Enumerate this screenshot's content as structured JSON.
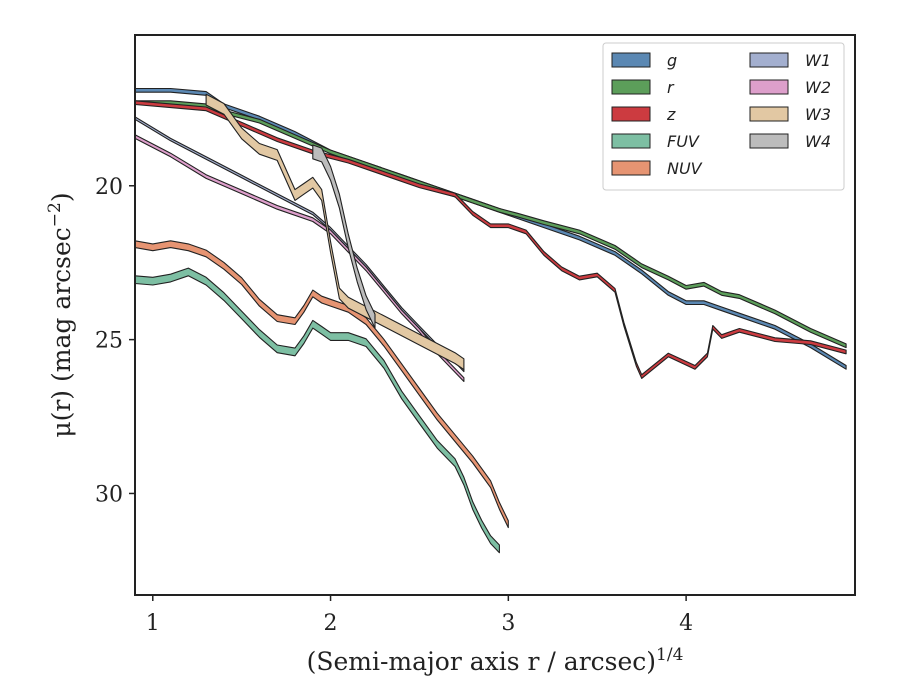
{
  "chart_data": {
    "type": "area",
    "xlabel": "(Semi-major axis r / arcsec)",
    "xlabel_exponent": "1/4",
    "ylabel": "μ(r) (mag arcsec",
    "ylabel_exponent": "−2",
    "ylabel_close": ")",
    "xlim": [
      0.9,
      4.95
    ],
    "ylim": [
      33.3,
      15.1
    ],
    "y_inverted": true,
    "x_ticks": [
      1,
      2,
      3,
      4
    ],
    "x_tick_labels": [
      "1",
      "2",
      "3",
      "4"
    ],
    "y_ticks": [
      20,
      25,
      30
    ],
    "y_tick_labels": [
      "20",
      "25",
      "30"
    ],
    "grid": false,
    "legend_position": "top-right",
    "legend_columns": 2,
    "series": [
      {
        "name": "g",
        "color": "#5b88b3",
        "width": 0.12,
        "x": [
          0.9,
          1.1,
          1.3,
          1.4,
          1.6,
          1.8,
          2.0,
          2.2,
          2.4,
          2.6,
          2.8,
          2.95,
          3.05,
          3.2,
          3.4,
          3.6,
          3.75,
          3.9,
          4.0,
          4.1,
          4.2,
          4.3,
          4.5,
          4.7,
          4.9
        ],
        "y": [
          16.9,
          16.9,
          17.0,
          17.4,
          17.8,
          18.3,
          18.9,
          19.3,
          19.7,
          20.1,
          20.5,
          20.8,
          21.0,
          21.3,
          21.7,
          22.2,
          22.8,
          23.5,
          23.8,
          23.8,
          24.0,
          24.2,
          24.6,
          25.2,
          25.9
        ]
      },
      {
        "name": "r",
        "color": "#5c9e5a",
        "width": 0.12,
        "x": [
          0.9,
          1.1,
          1.3,
          1.4,
          1.6,
          1.8,
          2.0,
          2.2,
          2.4,
          2.6,
          2.8,
          2.95,
          3.05,
          3.2,
          3.4,
          3.6,
          3.75,
          3.9,
          4.0,
          4.1,
          4.2,
          4.3,
          4.5,
          4.7,
          4.9
        ],
        "y": [
          17.3,
          17.3,
          17.4,
          17.6,
          17.9,
          18.4,
          18.9,
          19.3,
          19.7,
          20.1,
          20.5,
          20.8,
          20.95,
          21.2,
          21.5,
          22.0,
          22.6,
          23.0,
          23.3,
          23.2,
          23.5,
          23.6,
          24.1,
          24.7,
          25.2
        ]
      },
      {
        "name": "z",
        "color": "#cc3b40",
        "width": 0.12,
        "x": [
          0.9,
          1.1,
          1.3,
          1.5,
          1.7,
          1.9,
          2.1,
          2.3,
          2.5,
          2.7,
          2.8,
          2.9,
          3.0,
          3.1,
          3.2,
          3.3,
          3.4,
          3.5,
          3.6,
          3.65,
          3.72,
          3.75,
          3.9,
          4.05,
          4.12,
          4.15,
          4.2,
          4.3,
          4.5,
          4.7,
          4.9
        ],
        "y": [
          17.3,
          17.4,
          17.5,
          18.0,
          18.5,
          18.9,
          19.2,
          19.6,
          20.0,
          20.3,
          20.9,
          21.3,
          21.3,
          21.5,
          22.2,
          22.7,
          23.0,
          22.9,
          23.4,
          24.5,
          25.8,
          26.2,
          25.5,
          25.9,
          25.5,
          24.6,
          24.9,
          24.7,
          25.0,
          25.1,
          25.4
        ]
      },
      {
        "name": "FUV",
        "color": "#7dbfa3",
        "width": 0.25,
        "x": [
          0.9,
          1.0,
          1.1,
          1.2,
          1.3,
          1.4,
          1.5,
          1.6,
          1.7,
          1.8,
          1.85,
          1.9,
          1.95,
          2.0,
          2.1,
          2.2,
          2.3,
          2.4,
          2.5,
          2.6,
          2.7,
          2.75,
          2.8,
          2.85,
          2.9,
          2.95
        ],
        "y": [
          23.05,
          23.1,
          23.0,
          22.8,
          23.1,
          23.6,
          24.2,
          24.8,
          25.3,
          25.4,
          25.0,
          24.5,
          24.7,
          24.9,
          24.9,
          25.1,
          25.8,
          26.8,
          27.6,
          28.4,
          29.0,
          29.6,
          30.4,
          31.0,
          31.5,
          31.8
        ]
      },
      {
        "name": "NUV",
        "color": "#e69472",
        "width": 0.22,
        "x": [
          0.9,
          1.0,
          1.1,
          1.2,
          1.3,
          1.4,
          1.5,
          1.6,
          1.7,
          1.8,
          1.85,
          1.9,
          1.95,
          2.0,
          2.1,
          2.2,
          2.3,
          2.4,
          2.5,
          2.6,
          2.7,
          2.8,
          2.9,
          2.95,
          3.0
        ],
        "y": [
          21.9,
          22.0,
          21.9,
          22.0,
          22.2,
          22.6,
          23.1,
          23.8,
          24.3,
          24.4,
          24.0,
          23.5,
          23.7,
          23.8,
          24.0,
          24.4,
          25.1,
          25.9,
          26.7,
          27.5,
          28.2,
          28.9,
          29.7,
          30.4,
          31.0
        ]
      },
      {
        "name": "W1",
        "color": "#a3afcf",
        "width": 0.08,
        "x": [
          0.9,
          1.1,
          1.3,
          1.5,
          1.7,
          1.9,
          2.0,
          2.1,
          2.2,
          2.3,
          2.4,
          2.5,
          2.6,
          2.7,
          2.75
        ],
        "y": [
          17.8,
          18.5,
          19.1,
          19.7,
          20.3,
          20.9,
          21.4,
          22.0,
          22.6,
          23.3,
          24.0,
          24.6,
          25.2,
          25.7,
          26.0
        ]
      },
      {
        "name": "W2",
        "color": "#dd9fcb",
        "width": 0.12,
        "x": [
          0.9,
          1.1,
          1.3,
          1.5,
          1.7,
          1.9,
          2.0,
          2.1,
          2.2,
          2.3,
          2.4,
          2.5,
          2.6,
          2.7,
          2.75
        ],
        "y": [
          18.4,
          19.0,
          19.7,
          20.2,
          20.7,
          21.1,
          21.5,
          22.1,
          22.7,
          23.4,
          24.1,
          24.7,
          25.4,
          26.0,
          26.3
        ]
      },
      {
        "name": "W3",
        "color": "#e2c8a3",
        "width": 0.35,
        "x": [
          1.3,
          1.4,
          1.5,
          1.6,
          1.7,
          1.8,
          1.85,
          1.9,
          1.95,
          2.0,
          2.05,
          2.1,
          2.3,
          2.5,
          2.7,
          2.75
        ],
        "y": [
          17.2,
          17.5,
          18.3,
          18.8,
          19.0,
          20.3,
          20.1,
          19.9,
          20.3,
          22.0,
          23.5,
          23.8,
          24.4,
          25.0,
          25.6,
          25.8
        ]
      },
      {
        "name": "W4",
        "color": "#bcbcbc",
        "width": 0.45,
        "x": [
          1.9,
          1.95,
          2.0,
          2.05,
          2.1,
          2.15,
          2.2,
          2.25
        ],
        "y": [
          18.9,
          19.0,
          19.6,
          20.5,
          21.8,
          22.9,
          23.8,
          24.4
        ]
      }
    ]
  }
}
